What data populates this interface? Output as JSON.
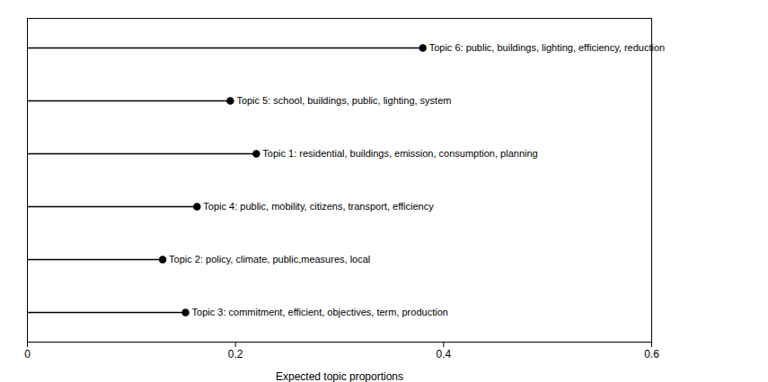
{
  "chart_data": {
    "type": "lollipop",
    "orientation": "horizontal",
    "categories": [
      "Topic 6: public, buildings, lighting, efficiency, reduction",
      "Topic 5: school, buildings, public, lighting, system",
      "Topic 1: residential, buildings, emission, consumption, planning",
      "Topic 4: public, mobility, citizens, transport, efficiency",
      "Topic 2: policy, climate, public,measures, local",
      "Topic 3: commitment, efficient, objectives, term, production"
    ],
    "values": [
      0.38,
      0.195,
      0.22,
      0.163,
      0.13,
      0.152
    ],
    "color": "black",
    "xlabel": "Expected topic proportions",
    "xlim": [
      0,
      0.6
    ],
    "xticks": [
      0,
      0.2,
      0.4,
      0.6
    ],
    "tick_labels": "x",
    "grid": false
  }
}
